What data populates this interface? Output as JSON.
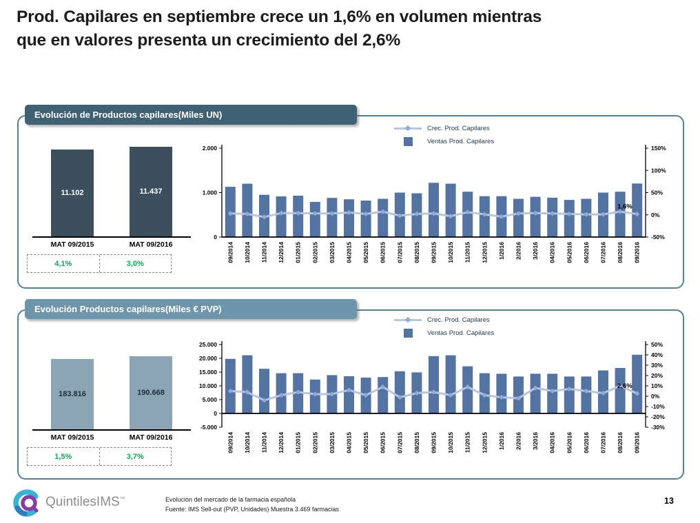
{
  "slide": {
    "title_line1": "Prod. Capilares en septiembre crece un 1,6% en volumen mientras",
    "title_line2": "que en valores presenta un crecimiento del 2,6%",
    "footer_line1": "Evolución del mercado de la farmacia española",
    "footer_line2": "Fuente: IMS Sell-out (PVP, Unidades) Muestra 3.469 farmacias",
    "logo_text": "QuintilesIMS",
    "logo_tm": "™",
    "page_number": "13"
  },
  "panels": [
    {
      "header": "Evolución de Productos capilares(Miles UN)"
    },
    {
      "header": "Evolución Productos capilares(Miles € PVP)"
    }
  ],
  "colors": {
    "panel_border": "#4c8398",
    "header_volume_bg": "#3e6173",
    "header_value_bg": "#6e95a9",
    "mini_bar_volume": "#3c4f5d",
    "mini_bar_value": "#8ba5b5",
    "mini_label_volume": "#ffffff",
    "mini_label_value": "#1f2d38",
    "bar_series": "#5373a3",
    "line_series": "#b6c5e2",
    "line_marker": "#93abd3",
    "growth_green": "#00b050",
    "legend_text": "#1f3550"
  },
  "chart_data": [
    {
      "id": "volume-mat",
      "type": "bar",
      "title": "Evolución de Productos capilares(Miles UN)",
      "categories": [
        "MAT 09/2015",
        "MAT 09/2016"
      ],
      "values": [
        11102,
        11437
      ],
      "value_labels": [
        "11.102",
        "11.437"
      ],
      "growth_labels": [
        "4,1%",
        "3,0%"
      ]
    },
    {
      "id": "volume-monthly",
      "type": "bar+line",
      "categories": [
        "09/2014",
        "10/2014",
        "11/2014",
        "12/2014",
        "01/2015",
        "02/2015",
        "03/2015",
        "04/2015",
        "05/2015",
        "06/2015",
        "07/2015",
        "08/2015",
        "09/2015",
        "10/2015",
        "11/2015",
        "12/2015",
        "1/2016",
        "2/2016",
        "3/2016",
        "04/2016",
        "05/2016",
        "06/2016",
        "07/2016",
        "08/2016",
        "09/2016"
      ],
      "series": [
        {
          "name": "Crec. Prod. Capilares",
          "type": "line",
          "axis": "right",
          "values": [
            3,
            2,
            -5,
            4,
            4,
            3,
            3,
            5,
            2,
            7,
            -2,
            2,
            3,
            -3,
            6,
            1,
            -4,
            3,
            4,
            3,
            2,
            1,
            1,
            7,
            1.6
          ]
        },
        {
          "name": "Ventas Prod. Capilares",
          "type": "bar",
          "axis": "left",
          "values": [
            1130,
            1200,
            950,
            915,
            930,
            790,
            880,
            850,
            820,
            860,
            1000,
            985,
            1220,
            1200,
            1020,
            920,
            920,
            860,
            905,
            885,
            835,
            860,
            1000,
            1020,
            1205
          ]
        }
      ],
      "left_axis": {
        "min": 0,
        "max": 2000,
        "ticks": [
          {
            "v": 0,
            "label": "0"
          },
          {
            "v": 1000,
            "label": "1.000"
          },
          {
            "v": 2000,
            "label": "2.000"
          }
        ]
      },
      "right_axis": {
        "min": -50,
        "max": 150,
        "ticks": [
          {
            "v": -50,
            "label": "-50%"
          },
          {
            "v": 0,
            "label": "0%"
          },
          {
            "v": 50,
            "label": "50%"
          },
          {
            "v": 100,
            "label": "100%"
          },
          {
            "v": 150,
            "label": "150%"
          }
        ]
      },
      "annotation": {
        "index": 24,
        "label": "1,6%"
      },
      "legend_position": "top"
    },
    {
      "id": "value-mat",
      "type": "bar",
      "title": "Evolución Productos capilares(Miles € PVP)",
      "categories": [
        "MAT 09/2015",
        "MAT 09/2016"
      ],
      "values": [
        183816,
        190668
      ],
      "value_labels": [
        "183.816",
        "190.668"
      ],
      "growth_labels": [
        "1,5%",
        "3,7%"
      ]
    },
    {
      "id": "value-monthly",
      "type": "bar+line",
      "categories": [
        "09/2014",
        "10/2014",
        "11/2014",
        "12/2014",
        "01/2015",
        "02/2015",
        "03/2015",
        "04/2015",
        "05/2015",
        "06/2015",
        "07/2015",
        "08/2015",
        "09/2015",
        "10/2015",
        "11/2015",
        "12/2015",
        "1/2016",
        "2/2016",
        "3/2016",
        "04/2016",
        "05/2016",
        "06/2016",
        "07/2016",
        "08/2016",
        "09/2016"
      ],
      "series": [
        {
          "name": "Crec. Prod. Capilares",
          "type": "line",
          "axis": "right",
          "values": [
            5,
            4,
            -4,
            1,
            4,
            2,
            2,
            6,
            1,
            9,
            -1,
            3,
            4,
            1,
            9,
            1,
            -1,
            -2,
            8,
            5,
            7,
            5,
            3,
            10,
            2.6
          ]
        },
        {
          "name": "Ventas Prod. Capilares",
          "type": "bar",
          "axis": "left",
          "values": [
            19800,
            21100,
            16200,
            14600,
            14600,
            12300,
            13900,
            13500,
            13000,
            13200,
            15300,
            14900,
            20800,
            21100,
            17100,
            14600,
            14400,
            13400,
            14400,
            14400,
            13400,
            13400,
            15600,
            16500,
            21300
          ]
        }
      ],
      "left_axis": {
        "min": -5000,
        "max": 25000,
        "ticks": [
          {
            "v": -5000,
            "label": "-5.000"
          },
          {
            "v": 0,
            "label": "0"
          },
          {
            "v": 5000,
            "label": "5.000"
          },
          {
            "v": 10000,
            "label": "10.000"
          },
          {
            "v": 15000,
            "label": "15.000"
          },
          {
            "v": 20000,
            "label": "20.000"
          },
          {
            "v": 25000,
            "label": "25.000"
          }
        ]
      },
      "right_axis": {
        "min": -30,
        "max": 50,
        "ticks": [
          {
            "v": -30,
            "label": "-30%"
          },
          {
            "v": -20,
            "label": "-20%"
          },
          {
            "v": -10,
            "label": "-10%"
          },
          {
            "v": 0,
            "label": "0%"
          },
          {
            "v": 10,
            "label": "10%"
          },
          {
            "v": 20,
            "label": "20%"
          },
          {
            "v": 30,
            "label": "30%"
          },
          {
            "v": 40,
            "label": "40%"
          },
          {
            "v": 50,
            "label": "50%"
          }
        ]
      },
      "annotation": {
        "index": 24,
        "label": "2,6%"
      },
      "legend_position": "top"
    }
  ]
}
